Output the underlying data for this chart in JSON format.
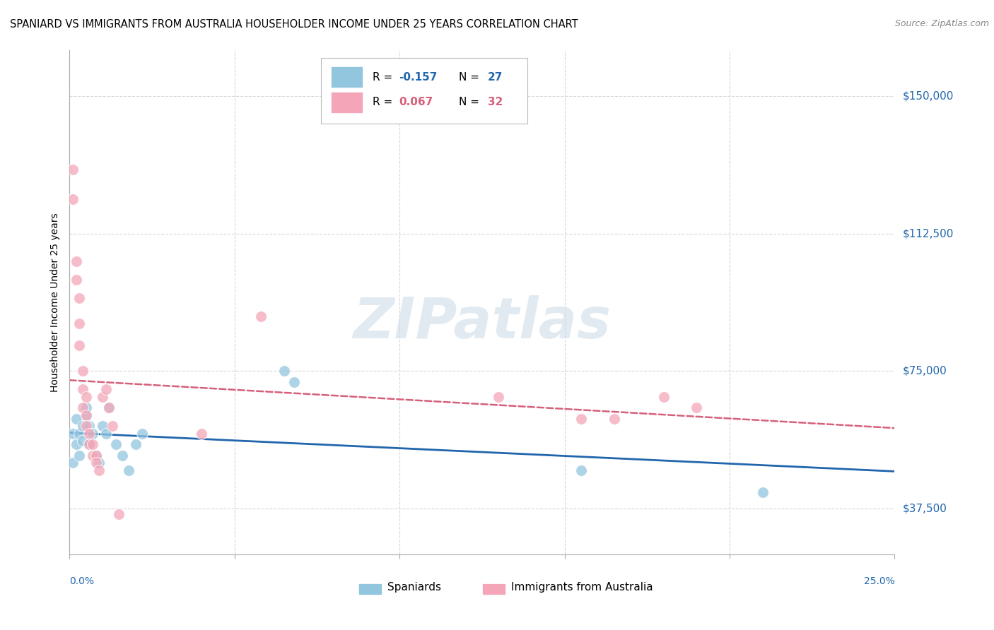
{
  "title": "SPANIARD VS IMMIGRANTS FROM AUSTRALIA HOUSEHOLDER INCOME UNDER 25 YEARS CORRELATION CHART",
  "source": "Source: ZipAtlas.com",
  "ylabel": "Householder Income Under 25 years",
  "xlim": [
    0.0,
    0.25
  ],
  "ylim": [
    25000,
    162500
  ],
  "yticks": [
    37500,
    75000,
    112500,
    150000
  ],
  "ytick_labels": [
    "$37,500",
    "$75,000",
    "$112,500",
    "$150,000"
  ],
  "xtick_positions": [
    0.0,
    0.05,
    0.1,
    0.15,
    0.2,
    0.25
  ],
  "spaniards_R": -0.157,
  "spaniards_N": 27,
  "immigrants_R": 0.067,
  "immigrants_N": 32,
  "color_spaniards": "#92c5de",
  "color_immigrants": "#f4a6b8",
  "color_spaniards_line": "#2166ac",
  "color_immigrants_line": "#d6607a",
  "watermark": "ZIPatlas",
  "spaniards_x": [
    0.001,
    0.001,
    0.002,
    0.002,
    0.003,
    0.003,
    0.004,
    0.004,
    0.005,
    0.005,
    0.006,
    0.006,
    0.007,
    0.008,
    0.009,
    0.01,
    0.011,
    0.012,
    0.014,
    0.016,
    0.018,
    0.02,
    0.022,
    0.065,
    0.068,
    0.155,
    0.21
  ],
  "spaniards_y": [
    50000,
    58000,
    62000,
    55000,
    58000,
    52000,
    60000,
    56000,
    63000,
    65000,
    60000,
    55000,
    58000,
    52000,
    50000,
    60000,
    58000,
    65000,
    55000,
    52000,
    48000,
    55000,
    58000,
    75000,
    72000,
    48000,
    42000
  ],
  "immigrants_x": [
    0.001,
    0.001,
    0.002,
    0.002,
    0.003,
    0.003,
    0.003,
    0.004,
    0.004,
    0.004,
    0.005,
    0.005,
    0.005,
    0.006,
    0.006,
    0.007,
    0.007,
    0.008,
    0.008,
    0.009,
    0.01,
    0.011,
    0.012,
    0.013,
    0.015,
    0.04,
    0.058,
    0.13,
    0.155,
    0.165,
    0.18,
    0.19
  ],
  "immigrants_y": [
    130000,
    122000,
    105000,
    100000,
    95000,
    88000,
    82000,
    75000,
    70000,
    65000,
    68000,
    63000,
    60000,
    58000,
    55000,
    55000,
    52000,
    52000,
    50000,
    48000,
    68000,
    70000,
    65000,
    60000,
    36000,
    58000,
    90000,
    68000,
    62000,
    62000,
    68000,
    65000
  ]
}
